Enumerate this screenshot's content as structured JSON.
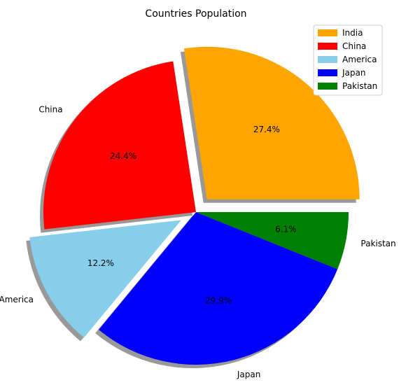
{
  "chart_data": {
    "type": "pie",
    "title": "Countries Population",
    "categories": [
      "India",
      "China",
      "America",
      "Japan",
      "Pakistan"
    ],
    "values": [
      27.4,
      24.4,
      12.2,
      29.9,
      6.1
    ],
    "labels": [
      "27.4%",
      "24.4%",
      "12.2%",
      "29.9%",
      "6.1%"
    ],
    "colors": [
      "#FFA500",
      "#FF0000",
      "#87CEEB",
      "#0000FF",
      "#008000"
    ],
    "exploded": [
      "India",
      "America"
    ],
    "shadow": true,
    "legend_position": "top-right"
  }
}
